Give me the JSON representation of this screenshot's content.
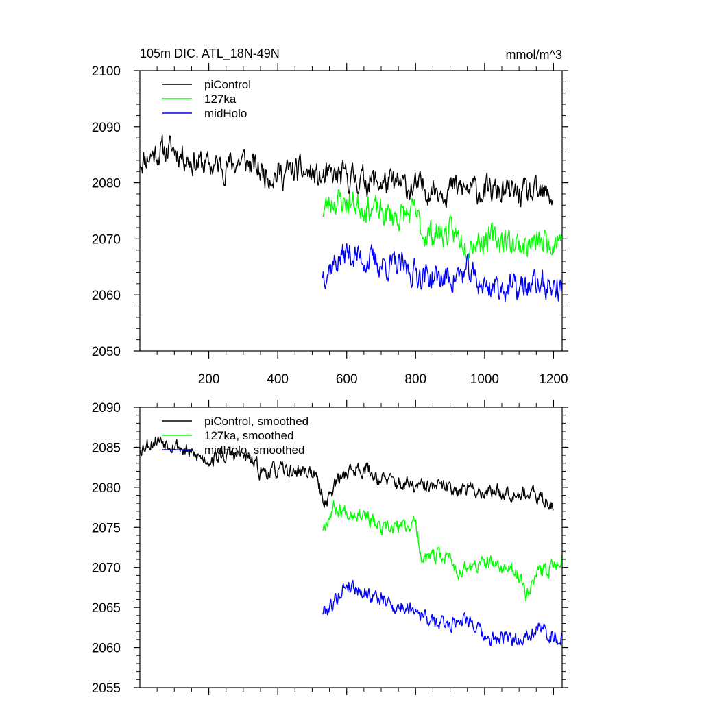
{
  "chart_data": [
    {
      "type": "line",
      "title": "105m DIC, ATL_18N-49N",
      "units": "mmol/m^3",
      "xlim": [
        0,
        1225
      ],
      "ylim": [
        2050,
        2100
      ],
      "yticks": [
        2050,
        2060,
        2070,
        2080,
        2090,
        2100
      ],
      "yticks_minor_step": 2,
      "xticks": [
        200,
        400,
        600,
        800,
        1000,
        1200
      ],
      "xticks_minor_step": 50,
      "xtick_labels": [
        "200",
        "400",
        "600",
        "800",
        "1000",
        "1200"
      ],
      "ytick_labels": [
        "2050",
        "2060",
        "2070",
        "2080",
        "2090",
        "2100"
      ],
      "legend_position": "top-left",
      "legend": [
        "piControl",
        "127ka",
        "midHolo"
      ],
      "series": [
        {
          "name": "piControl",
          "color": "#000000",
          "x_start": 1,
          "x_end": 1200,
          "anchors": [
            [
              1,
              2084
            ],
            [
              50,
              2085.5
            ],
            [
              100,
              2086
            ],
            [
              150,
              2084
            ],
            [
              200,
              2083
            ],
            [
              250,
              2083
            ],
            [
              300,
              2084
            ],
            [
              350,
              2082
            ],
            [
              400,
              2081.5
            ],
            [
              450,
              2082
            ],
            [
              500,
              2081.5
            ],
            [
              520,
              2080.5
            ],
            [
              560,
              2081
            ],
            [
              600,
              2081
            ],
            [
              650,
              2080.5
            ],
            [
              700,
              2080
            ],
            [
              800,
              2079
            ],
            [
              900,
              2079
            ],
            [
              1000,
              2078.5
            ],
            [
              1100,
              2078
            ],
            [
              1200,
              2077.5
            ]
          ],
          "noise": 2.0,
          "seed": 11
        },
        {
          "name": "127ka",
          "color": "#00ff00",
          "x_start": 530,
          "x_end": 1225,
          "anchors": [
            [
              530,
              2075
            ],
            [
              560,
              2077
            ],
            [
              600,
              2076.5
            ],
            [
              650,
              2076
            ],
            [
              700,
              2074.5
            ],
            [
              750,
              2074
            ],
            [
              800,
              2074.5
            ],
            [
              820,
              2071
            ],
            [
              900,
              2071
            ],
            [
              950,
              2069.5
            ],
            [
              1000,
              2070
            ],
            [
              1050,
              2070
            ],
            [
              1100,
              2069
            ],
            [
              1150,
              2069
            ],
            [
              1225,
              2070.5
            ]
          ],
          "noise": 2.0,
          "seed": 23
        },
        {
          "name": "midHolo",
          "color": "#0000ff",
          "x_start": 530,
          "x_end": 1225,
          "anchors": [
            [
              530,
              2064
            ],
            [
              600,
              2067.5
            ],
            [
              650,
              2066.5
            ],
            [
              700,
              2065.5
            ],
            [
              750,
              2065
            ],
            [
              800,
              2064
            ],
            [
              850,
              2063
            ],
            [
              900,
              2063
            ],
            [
              950,
              2064
            ],
            [
              1000,
              2061.5
            ],
            [
              1050,
              2061.5
            ],
            [
              1100,
              2061
            ],
            [
              1150,
              2062
            ],
            [
              1225,
              2061
            ]
          ],
          "noise": 2.0,
          "seed": 37
        }
      ]
    },
    {
      "type": "line",
      "xlim": [
        0,
        1225
      ],
      "ylim": [
        2055,
        2090
      ],
      "yticks": [
        2055,
        2060,
        2065,
        2070,
        2075,
        2080,
        2085,
        2090
      ],
      "yticks_minor_step": 1,
      "xticks": [
        200,
        400,
        600,
        800,
        1000,
        1200
      ],
      "xticks_minor_step": 50,
      "ytick_labels": [
        "2055",
        "2060",
        "2065",
        "2070",
        "2075",
        "2080",
        "2085",
        "2090"
      ],
      "legend_position": "top-left",
      "legend": [
        "piControl, smoothed",
        "127ka, smoothed",
        "midHolo, smoothed"
      ],
      "series": [
        {
          "name": "piControl, smoothed",
          "color": "#000000",
          "x_start": 1,
          "x_end": 1200,
          "anchors": [
            [
              1,
              2085
            ],
            [
              50,
              2086
            ],
            [
              100,
              2085.5
            ],
            [
              150,
              2084
            ],
            [
              200,
              2083.5
            ],
            [
              250,
              2084
            ],
            [
              300,
              2084
            ],
            [
              330,
              2083
            ],
            [
              350,
              2082
            ],
            [
              400,
              2082
            ],
            [
              450,
              2082
            ],
            [
              500,
              2082
            ],
            [
              520,
              2080
            ],
            [
              540,
              2078
            ],
            [
              560,
              2080
            ],
            [
              600,
              2082
            ],
            [
              650,
              2082.5
            ],
            [
              700,
              2081
            ],
            [
              800,
              2080
            ],
            [
              900,
              2080
            ],
            [
              1000,
              2079.5
            ],
            [
              1100,
              2079.5
            ],
            [
              1200,
              2078
            ]
          ],
          "noise": 0.8,
          "seed": 53
        },
        {
          "name": "127ka, smoothed",
          "color": "#00ff00",
          "x_start": 530,
          "x_end": 1225,
          "anchors": [
            [
              530,
              2075
            ],
            [
              560,
              2077.5
            ],
            [
              600,
              2077
            ],
            [
              650,
              2077
            ],
            [
              700,
              2074.5
            ],
            [
              750,
              2075
            ],
            [
              800,
              2075.5
            ],
            [
              820,
              2071
            ],
            [
              900,
              2071.5
            ],
            [
              920,
              2069.5
            ],
            [
              1000,
              2070.5
            ],
            [
              1050,
              2070
            ],
            [
              1100,
              2069
            ],
            [
              1120,
              2067
            ],
            [
              1150,
              2069
            ],
            [
              1225,
              2071
            ]
          ],
          "noise": 0.8,
          "seed": 67
        },
        {
          "name": "midHolo, smoothed",
          "color": "#0000ff",
          "x_start": 530,
          "x_end": 1225,
          "anchors": [
            [
              530,
              2064.5
            ],
            [
              560,
              2065.5
            ],
            [
              600,
              2068
            ],
            [
              650,
              2067
            ],
            [
              700,
              2066
            ],
            [
              750,
              2065
            ],
            [
              800,
              2065
            ],
            [
              850,
              2063
            ],
            [
              900,
              2063
            ],
            [
              950,
              2064
            ],
            [
              1000,
              2061
            ],
            [
              1050,
              2061
            ],
            [
              1100,
              2061
            ],
            [
              1150,
              2062.5
            ],
            [
              1225,
              2061
            ]
          ],
          "noise": 0.8,
          "seed": 79
        }
      ]
    }
  ]
}
